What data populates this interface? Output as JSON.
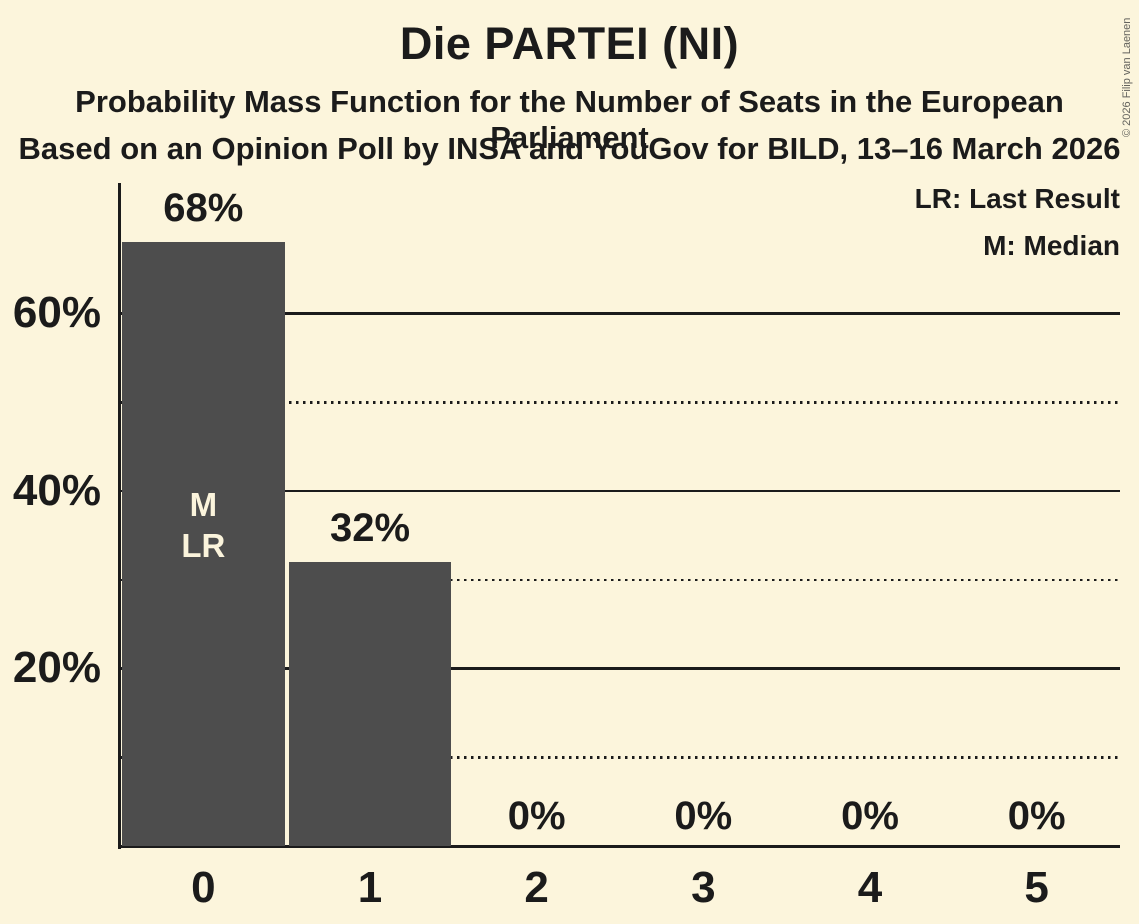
{
  "header": {
    "title": "Die PARTEI (NI)",
    "subtitle": "Probability Mass Function for the Number of Seats in the European Parliament",
    "subsubtitle": "Based on an Opinion Poll by INSA and YouGov for BILD, 13–16 March 2026"
  },
  "legend": {
    "lr_label": "LR: Last Result",
    "m_label": "M: Median"
  },
  "copyright": "© 2026 Filip van Laenen",
  "chart_data": {
    "type": "bar",
    "title": "Die PARTEI (NI)",
    "categories": [
      "0",
      "1",
      "2",
      "3",
      "4",
      "5"
    ],
    "values": [
      68,
      32,
      0,
      0,
      0,
      0
    ],
    "value_labels": [
      "68%",
      "32%",
      "0%",
      "0%",
      "0%",
      "0%"
    ],
    "xlabel": "",
    "ylabel": "",
    "ylim": [
      0,
      74.5
    ],
    "yticks": [
      {
        "value": 20,
        "label": "20%"
      },
      {
        "value": 40,
        "label": "40%"
      },
      {
        "value": 60,
        "label": "60%"
      }
    ],
    "gridlines": {
      "solid": [
        20,
        40,
        60
      ],
      "dotted": [
        10,
        30,
        50
      ]
    },
    "bar_annotations": [
      {
        "category_index": 0,
        "lines": [
          "M",
          "LR"
        ]
      }
    ],
    "legend_position": "top-right"
  },
  "colors": {
    "background": "#fcf5dc",
    "bar": "#4d4d4d",
    "text": "#1b1b1b",
    "bar_label_text": "#fbf4dc"
  }
}
